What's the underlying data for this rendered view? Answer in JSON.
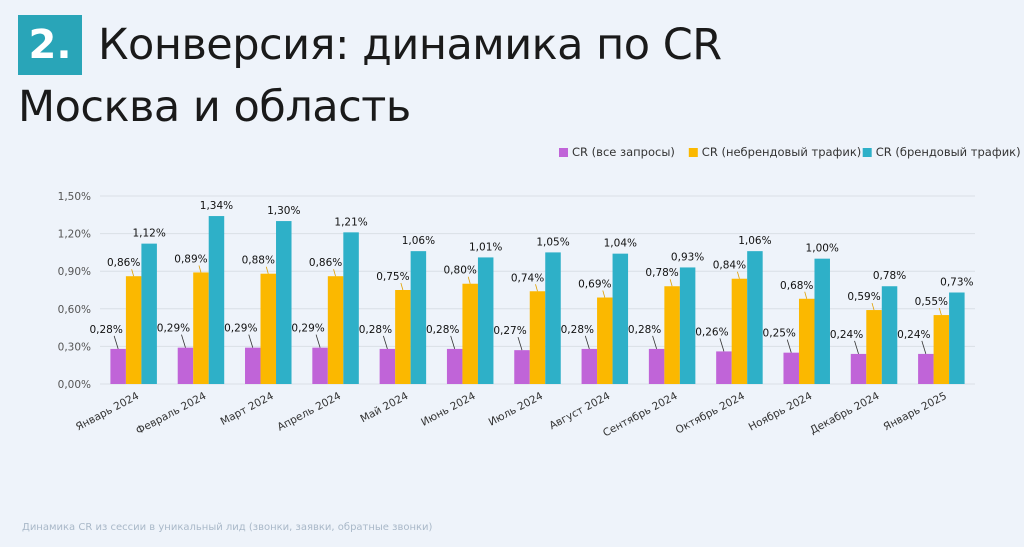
{
  "header": {
    "number": "2.",
    "title_line1": "Конверсия: динамика по CR",
    "title_line2": "Москва и область"
  },
  "footer": {
    "note": "Динамика CR из сессии в уникальный лид (звонки, заявки, обратные звонки)"
  },
  "chart_data": {
    "type": "bar",
    "categories": [
      "Январь 2024",
      "Февраль 2024",
      "Март 2024",
      "Апрель 2024",
      "Май 2024",
      "Июнь 2024",
      "Июль 2024",
      "Август 2024",
      "Сентябрь 2024",
      "Октябрь 2024",
      "Ноябрь 2024",
      "Декабрь 2024",
      "Январь 2025"
    ],
    "series": [
      {
        "name": "CR (все запросы)",
        "color": "#c064d8",
        "values": [
          0.28,
          0.29,
          0.29,
          0.29,
          0.28,
          0.28,
          0.27,
          0.28,
          0.28,
          0.26,
          0.25,
          0.24,
          0.24
        ],
        "labels": [
          "0,28%",
          "0,29%",
          "0,29%",
          "0,29%",
          "0,28%",
          "0,28%",
          "0,27%",
          "0,28%",
          "0,28%",
          "0,26%",
          "0,25%",
          "0,24%",
          "0,24%"
        ]
      },
      {
        "name": "CR (небрендовый трафик)",
        "color": "#fbb800",
        "values": [
          0.86,
          0.89,
          0.88,
          0.86,
          0.75,
          0.8,
          0.74,
          0.69,
          0.78,
          0.84,
          0.68,
          0.59,
          0.55
        ],
        "labels": [
          "0,86%",
          "0,89%",
          "0,88%",
          "0,86%",
          "0,75%",
          "0,80%",
          "0,74%",
          "0,69%",
          "0,78%",
          "0,84%",
          "0,68%",
          "0,59%",
          "0,55%"
        ]
      },
      {
        "name": "CR (брендовый трафик)",
        "color": "#2eb0c8",
        "values": [
          1.12,
          1.34,
          1.3,
          1.21,
          1.06,
          1.01,
          1.05,
          1.04,
          0.93,
          1.06,
          1.0,
          0.78,
          0.73
        ],
        "labels": [
          "1,12%",
          "1,34%",
          "1,30%",
          "1,21%",
          "1,06%",
          "1,01%",
          "1,05%",
          "1,04%",
          "0,93%",
          "1,06%",
          "1,00%",
          "0,78%",
          "0,73%"
        ]
      }
    ],
    "yticks": [
      "0,00%",
      "0,30%",
      "0,60%",
      "0,90%",
      "1,20%",
      "1,50%"
    ],
    "ylim": [
      0,
      1.5
    ],
    "grid": true,
    "legend": "top-right"
  }
}
